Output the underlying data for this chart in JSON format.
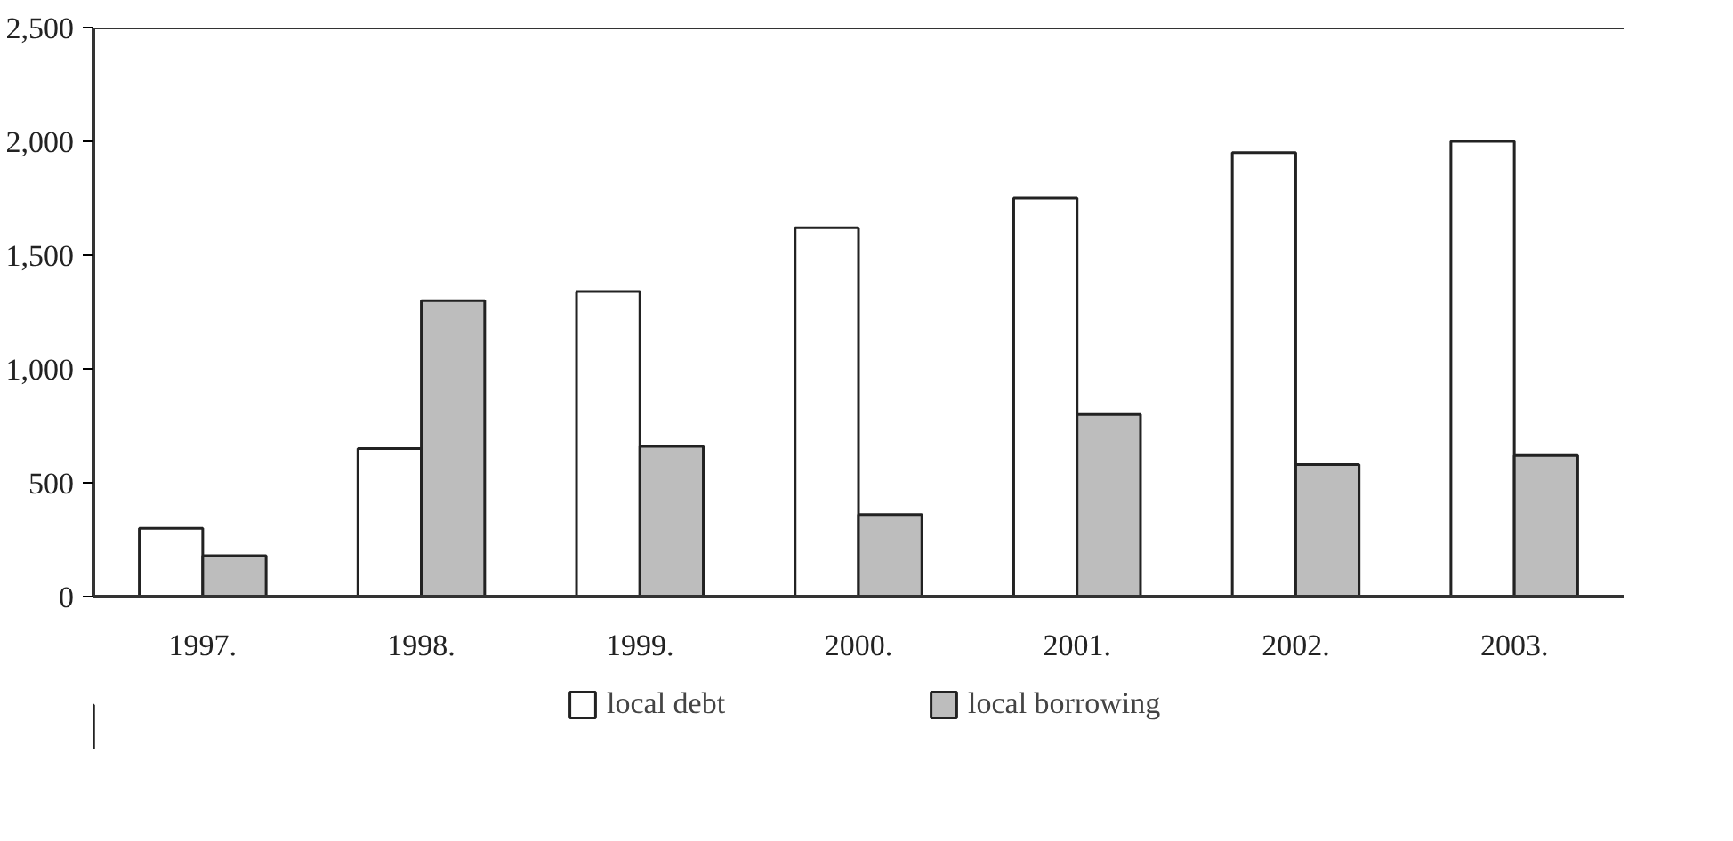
{
  "chart_data": {
    "type": "bar",
    "categories": [
      "1997.",
      "1998.",
      "1999.",
      "2000.",
      "2001.",
      "2002.",
      "2003."
    ],
    "series": [
      {
        "name": "local debt",
        "color": "#ffffff",
        "values": [
          300,
          650,
          1340,
          1620,
          1750,
          1950,
          2000
        ]
      },
      {
        "name": "local borrowing",
        "color": "#bdbdbd",
        "values": [
          180,
          1300,
          660,
          360,
          800,
          580,
          620
        ]
      }
    ],
    "ylim": [
      0,
      2500
    ],
    "yticks": [
      {
        "value": 0,
        "label": "0"
      },
      {
        "value": 500,
        "label": "500"
      },
      {
        "value": 1000,
        "label": "1,000"
      },
      {
        "value": 1500,
        "label": "1,500"
      },
      {
        "value": 2000,
        "label": "2,000"
      },
      {
        "value": 2500,
        "label": "2,500"
      }
    ],
    "grid": false,
    "legend": "bottom"
  }
}
